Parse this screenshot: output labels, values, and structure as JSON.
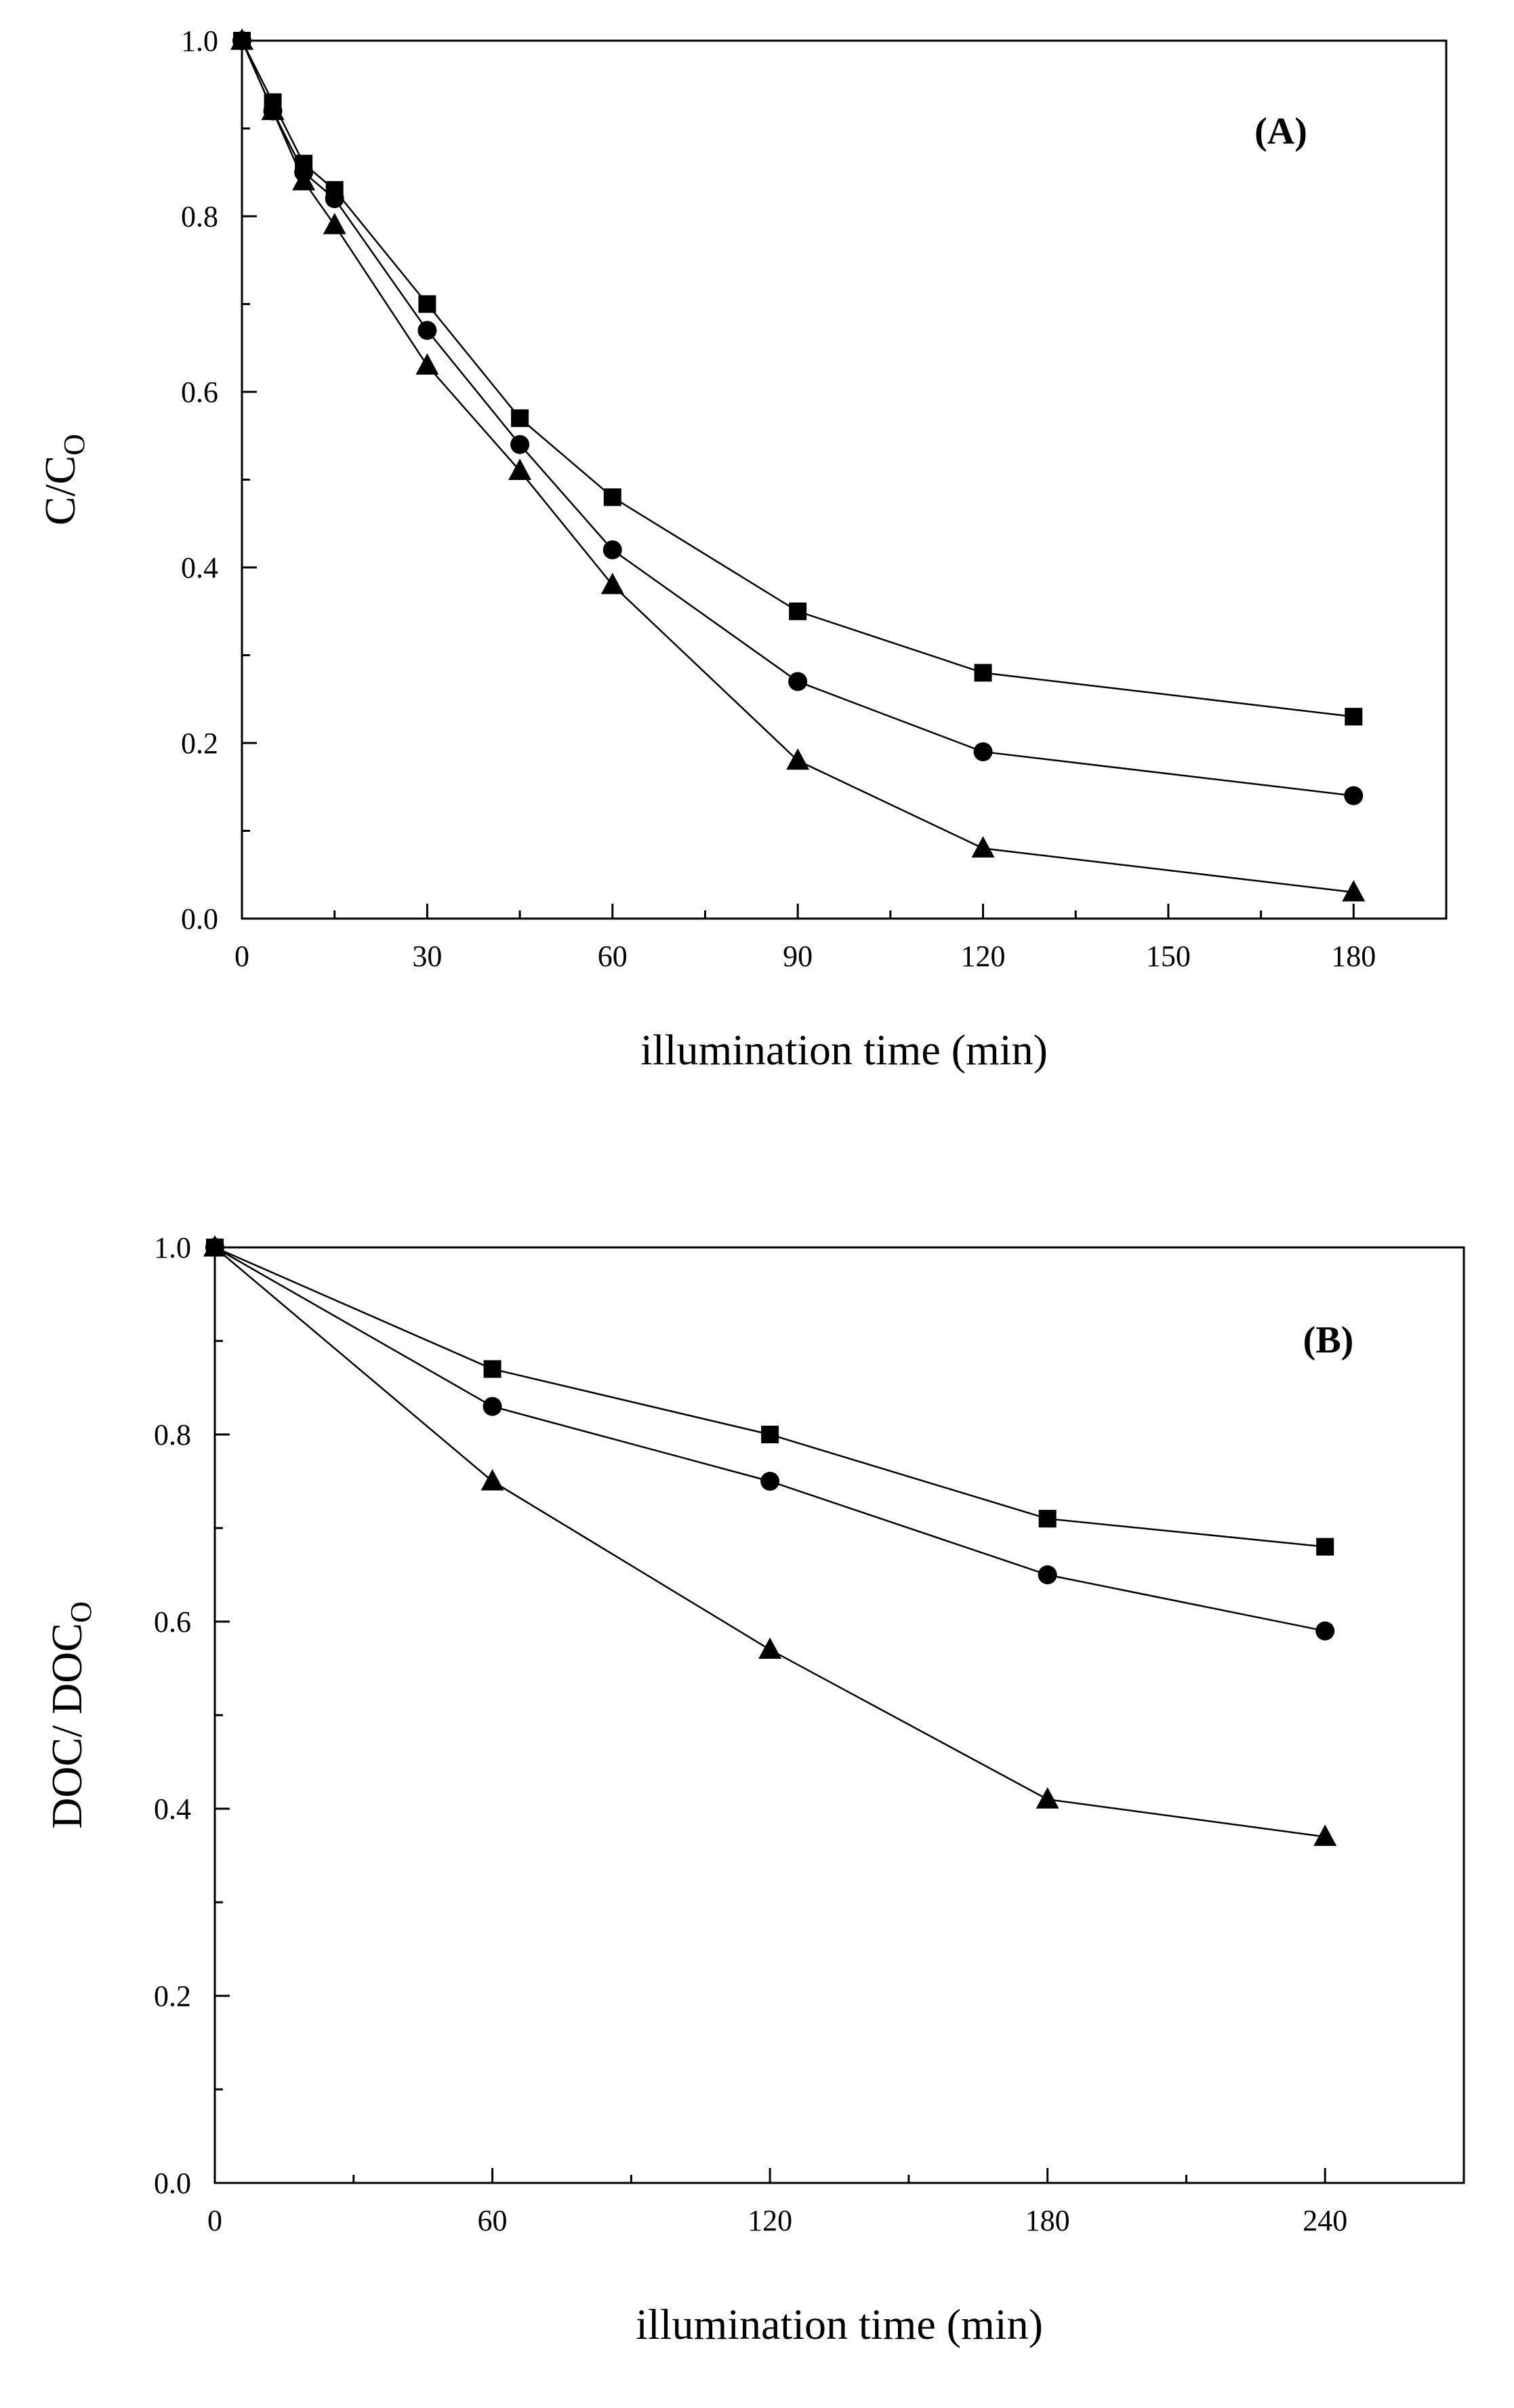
{
  "chart_data": [
    {
      "type": "line",
      "panel_label": "(A)",
      "xlabel": "illumination time (min)",
      "ylabel_main": "C/C",
      "ylabel_sub": "O",
      "xlim": [
        0,
        195
      ],
      "ylim": [
        0,
        1.0
      ],
      "xticks": [
        0,
        30,
        60,
        90,
        120,
        150,
        180
      ],
      "xtick_labels": [
        "0",
        "30",
        "60",
        "90",
        "120",
        "150",
        "180"
      ],
      "yticks": [
        0,
        0.2,
        0.4,
        0.6,
        0.8,
        1.0
      ],
      "ytick_labels": [
        "0.0",
        "0.2",
        "0.4",
        "0.6",
        "0.8",
        "1.0"
      ],
      "series": [
        {
          "name": "square",
          "marker": "square",
          "x": [
            0,
            5,
            10,
            15,
            30,
            45,
            60,
            90,
            120,
            180
          ],
          "values": [
            1.0,
            0.93,
            0.86,
            0.83,
            0.7,
            0.57,
            0.48,
            0.35,
            0.28,
            0.23
          ]
        },
        {
          "name": "circle",
          "marker": "circle",
          "x": [
            0,
            5,
            10,
            15,
            30,
            45,
            60,
            90,
            120,
            180
          ],
          "values": [
            1.0,
            0.92,
            0.85,
            0.82,
            0.67,
            0.54,
            0.42,
            0.27,
            0.19,
            0.14
          ]
        },
        {
          "name": "triangle",
          "marker": "triangle",
          "x": [
            0,
            5,
            10,
            15,
            30,
            45,
            60,
            90,
            120,
            180
          ],
          "values": [
            1.0,
            0.92,
            0.84,
            0.79,
            0.63,
            0.51,
            0.38,
            0.18,
            0.08,
            0.03
          ]
        }
      ]
    },
    {
      "type": "line",
      "panel_label": "(B)",
      "xlabel": "illumination time (min)",
      "ylabel_main": "DOC/ DOC",
      "ylabel_sub": "O",
      "xlim": [
        0,
        270
      ],
      "ylim": [
        0,
        1.0
      ],
      "xticks": [
        0,
        60,
        120,
        180,
        240
      ],
      "xtick_labels": [
        "0",
        "60",
        "120",
        "180",
        "240"
      ],
      "yticks": [
        0,
        0.2,
        0.4,
        0.6,
        0.8,
        1.0
      ],
      "ytick_labels": [
        "0.0",
        "0.2",
        "0.4",
        "0.6",
        "0.8",
        "1.0"
      ],
      "series": [
        {
          "name": "square",
          "marker": "square",
          "x": [
            0,
            60,
            120,
            180,
            240
          ],
          "values": [
            1.0,
            0.87,
            0.8,
            0.71,
            0.68
          ]
        },
        {
          "name": "circle",
          "marker": "circle",
          "x": [
            0,
            60,
            120,
            180,
            240
          ],
          "values": [
            1.0,
            0.83,
            0.75,
            0.65,
            0.59
          ]
        },
        {
          "name": "triangle",
          "marker": "triangle",
          "x": [
            0,
            60,
            120,
            180,
            240
          ],
          "values": [
            1.0,
            0.75,
            0.57,
            0.41,
            0.37
          ]
        }
      ]
    }
  ]
}
